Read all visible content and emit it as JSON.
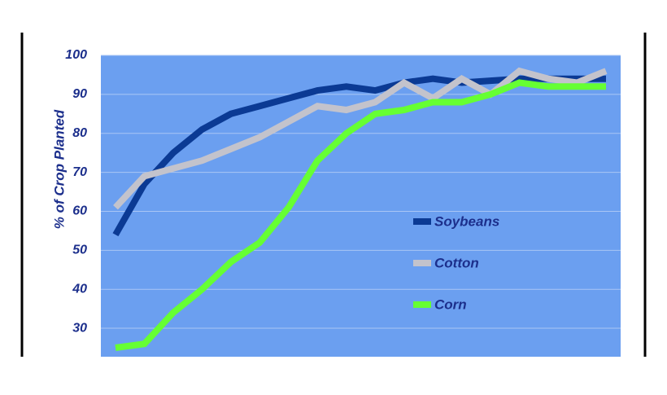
{
  "chart_data": {
    "type": "line",
    "y_label": "% of Crop Planted",
    "categories": [
      null,
      null,
      null,
      null,
      null,
      null,
      null,
      null,
      null,
      null,
      null,
      null,
      null,
      null,
      null,
      null,
      null,
      null
    ],
    "series": [
      {
        "name": "Soybeans",
        "color": "#0b3a94",
        "values": [
          54,
          67,
          75,
          81,
          85,
          87,
          89,
          91,
          92,
          91,
          93,
          94,
          93,
          93.5,
          94,
          94,
          94,
          94
        ]
      },
      {
        "name": "Cotton",
        "color": "#c3c3cc",
        "values": [
          61,
          69,
          71,
          73,
          76,
          79,
          83,
          87,
          86,
          88,
          93,
          89,
          94,
          90,
          96,
          94,
          93,
          96
        ]
      },
      {
        "name": "Corn",
        "color": "#66ff33",
        "values": [
          25,
          26,
          34,
          40,
          47,
          52,
          61,
          73,
          80,
          85,
          86,
          88,
          88,
          90,
          93,
          92,
          92,
          92
        ]
      }
    ],
    "ylim": [
      22.7,
      100
    ],
    "yticks": [
      30,
      40,
      50,
      60,
      70,
      80,
      90,
      100
    ],
    "grid": true
  }
}
